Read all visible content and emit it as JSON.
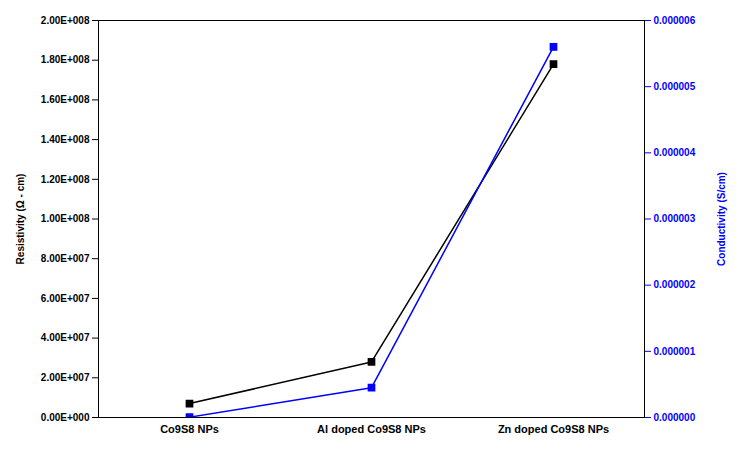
{
  "chart_data": {
    "type": "line",
    "categories": [
      "Co9S8 NPs",
      "Al doped Co9S8 NPs",
      "Zn doped Co9S8 NPs"
    ],
    "series": [
      {
        "color": "black",
        "marker": "square",
        "axis": "y",
        "values": [
          7000000,
          28000000.0,
          178000000.0
        ]
      },
      {
        "color": "blue",
        "marker": "square",
        "axis": "y2",
        "values": [
          5e-09,
          4.5e-07,
          5.6e-06
        ]
      }
    ],
    "ylabel": "Resistivity (Ω - cm)",
    "y2label": "Conductivity (S/cm)",
    "ylim": [
      0,
      200000000.0
    ],
    "yticks": [
      {
        "value": 0,
        "label": "0.00E+000"
      },
      {
        "value": 20000000.0,
        "label": "2.00E+007"
      },
      {
        "value": 40000000.0,
        "label": "4.00E+007"
      },
      {
        "value": 60000000.0,
        "label": "6.00E+007"
      },
      {
        "value": 80000000.0,
        "label": "8.00E+007"
      },
      {
        "value": 100000000.0,
        "label": "1.00E+008"
      },
      {
        "value": 120000000.0,
        "label": "1.20E+008"
      },
      {
        "value": 140000000.0,
        "label": "1.40E+008"
      },
      {
        "value": 160000000.0,
        "label": "1.60E+008"
      },
      {
        "value": 180000000.0,
        "label": "1.80E+008"
      },
      {
        "value": 200000000.0,
        "label": "2.00E+008"
      }
    ],
    "y2lim": [
      0,
      6e-06
    ],
    "y2ticks": [
      {
        "value": 0,
        "label": "0.000000"
      },
      {
        "value": 1e-06,
        "label": "0.000001"
      },
      {
        "value": 2e-06,
        "label": "0.000002"
      },
      {
        "value": 3e-06,
        "label": "0.000003"
      },
      {
        "value": 4e-06,
        "label": "0.000004"
      },
      {
        "value": 5e-06,
        "label": "0.000005"
      },
      {
        "value": 6e-06,
        "label": "0.000006"
      }
    ]
  }
}
